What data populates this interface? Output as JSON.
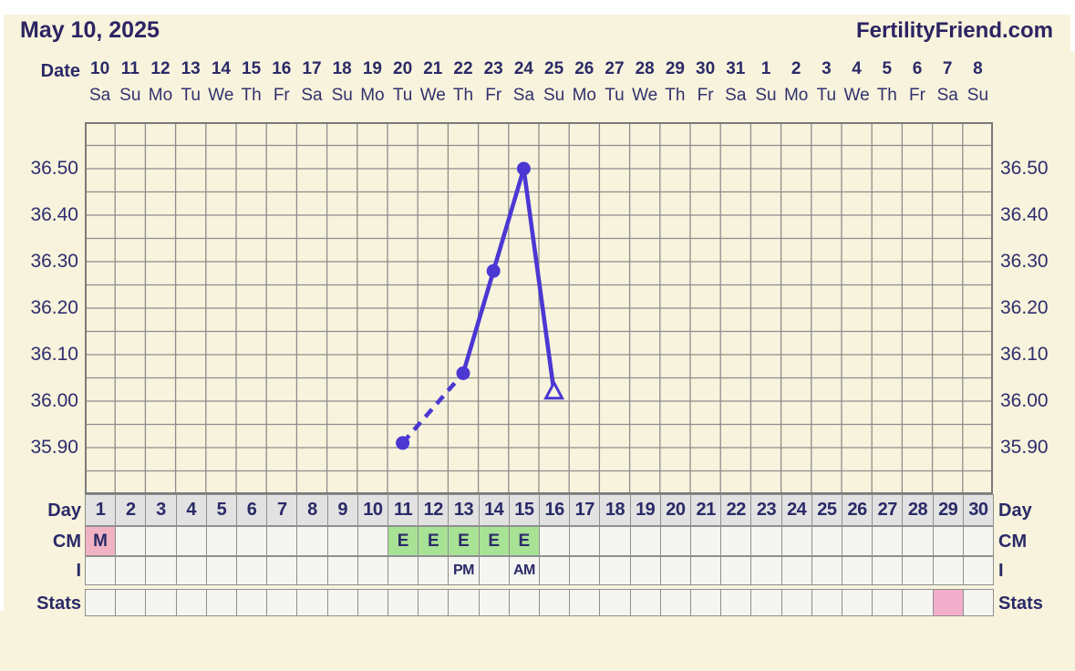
{
  "page": {
    "title": "May 10, 2025",
    "brand": "FertilityFriend.com"
  },
  "axis_top": {
    "date_label": "Date",
    "dates": [
      "10",
      "11",
      "12",
      "13",
      "14",
      "15",
      "16",
      "17",
      "18",
      "19",
      "20",
      "21",
      "22",
      "23",
      "24",
      "25",
      "26",
      "27",
      "28",
      "29",
      "30",
      "31",
      "1",
      "2",
      "3",
      "4",
      "5",
      "6",
      "7",
      "8"
    ],
    "weekdays": [
      "Sa",
      "Su",
      "Mo",
      "Tu",
      "We",
      "Th",
      "Fr",
      "Sa",
      "Su",
      "Mo",
      "Tu",
      "We",
      "Th",
      "Fr",
      "Sa",
      "Su",
      "Mo",
      "Tu",
      "We",
      "Th",
      "Fr",
      "Sa",
      "Su",
      "Mo",
      "Tu",
      "We",
      "Th",
      "Fr",
      "Sa",
      "Su"
    ]
  },
  "chart_data": {
    "type": "line",
    "y_unit": "celsius",
    "ylim": [
      35.8,
      36.61
    ],
    "ytick_labels": [
      "36.50",
      "36.40",
      "36.30",
      "36.20",
      "36.10",
      "36.00",
      "35.90"
    ],
    "ytick_values": [
      36.5,
      36.4,
      36.3,
      36.2,
      36.1,
      36.0,
      35.9
    ],
    "x_is_cycle_day": true,
    "xlim": [
      1,
      30
    ],
    "grid": "on",
    "points": [
      {
        "cycle_day": 11,
        "temp": 35.91,
        "marker": "filled-circle"
      },
      {
        "cycle_day": 13,
        "temp": 36.06,
        "marker": "filled-circle"
      },
      {
        "cycle_day": 14,
        "temp": 36.28,
        "marker": "filled-circle"
      },
      {
        "cycle_day": 15,
        "temp": 36.5,
        "marker": "filled-circle"
      },
      {
        "cycle_day": 16,
        "temp": 36.02,
        "marker": "open-triangle"
      }
    ],
    "segments": [
      {
        "from_day": 11,
        "to_day": 13,
        "line": "dashed"
      },
      {
        "from_day": 13,
        "to_day": 14,
        "line": "solid"
      },
      {
        "from_day": 14,
        "to_day": 15,
        "line": "solid"
      },
      {
        "from_day": 15,
        "to_day": 16,
        "line": "solid"
      }
    ]
  },
  "table": {
    "day_label": "Day",
    "days": [
      "1",
      "2",
      "3",
      "4",
      "5",
      "6",
      "7",
      "8",
      "9",
      "10",
      "11",
      "12",
      "13",
      "14",
      "15",
      "16",
      "17",
      "18",
      "19",
      "20",
      "21",
      "22",
      "23",
      "24",
      "25",
      "26",
      "27",
      "28",
      "29",
      "30"
    ],
    "cm_label": "CM",
    "cm_entries": [
      {
        "day": 1,
        "value": "M",
        "fill": "pink"
      },
      {
        "day": 11,
        "value": "E",
        "fill": "green"
      },
      {
        "day": 12,
        "value": "E",
        "fill": "green"
      },
      {
        "day": 13,
        "value": "E",
        "fill": "green"
      },
      {
        "day": 14,
        "value": "E",
        "fill": "green"
      },
      {
        "day": 15,
        "value": "E",
        "fill": "green"
      }
    ],
    "i_label": "I",
    "i_entries": [
      {
        "day": 13,
        "value": "PM"
      },
      {
        "day": 15,
        "value": "AM"
      }
    ],
    "stats_label": "Stats",
    "stats_entries": [
      {
        "day": 29,
        "value": "",
        "fill": "pink"
      }
    ]
  },
  "colors": {
    "line_accent": "#4b38d3",
    "navy_text": "#2a2a68",
    "page_cream": "#f8f3dc",
    "grid_grey": "#8d8d8d",
    "grid_border": "#7a7a7a",
    "cell_offwhite": "#f5f5f1",
    "day_row_grey": "#e2e2e2",
    "menses_pink": "#f1b2c3",
    "stats_pink": "#f2aecb",
    "eggwhite_green": "#a8e295"
  }
}
